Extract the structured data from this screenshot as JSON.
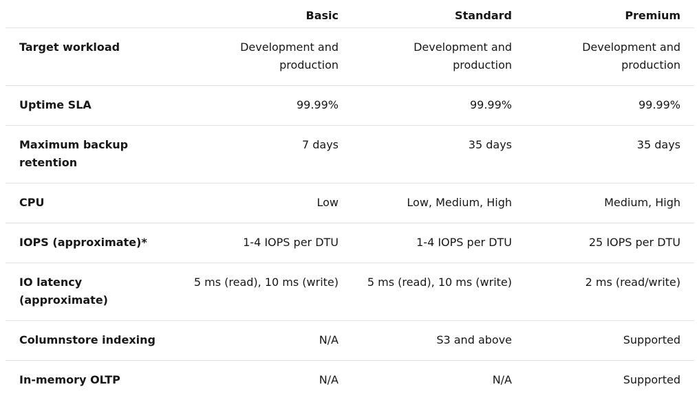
{
  "table": {
    "headers": [
      "",
      "Basic",
      "Standard",
      "Premium"
    ],
    "rows": [
      {
        "label": "Target workload",
        "values": [
          "Development and production",
          "Development and production",
          "Development and production"
        ]
      },
      {
        "label": "Uptime SLA",
        "values": [
          "99.99%",
          "99.99%",
          "99.99%"
        ]
      },
      {
        "label": "Maximum backup retention",
        "values": [
          "7 days",
          "35 days",
          "35 days"
        ]
      },
      {
        "label": "CPU",
        "values": [
          "Low",
          "Low, Medium, High",
          "Medium, High"
        ]
      },
      {
        "label": "IOPS (approximate)*",
        "values": [
          "1-4 IOPS per DTU",
          "1-4 IOPS per DTU",
          "25 IOPS per DTU"
        ]
      },
      {
        "label": "IO latency (approximate)",
        "values": [
          "5 ms (read), 10 ms (write)",
          "5 ms (read), 10 ms (write)",
          "2 ms (read/write)"
        ]
      },
      {
        "label": "Columnstore indexing",
        "values": [
          "N/A",
          "S3 and above",
          "Supported"
        ]
      },
      {
        "label": "In-memory OLTP",
        "values": [
          "N/A",
          "N/A",
          "Supported"
        ]
      }
    ]
  }
}
